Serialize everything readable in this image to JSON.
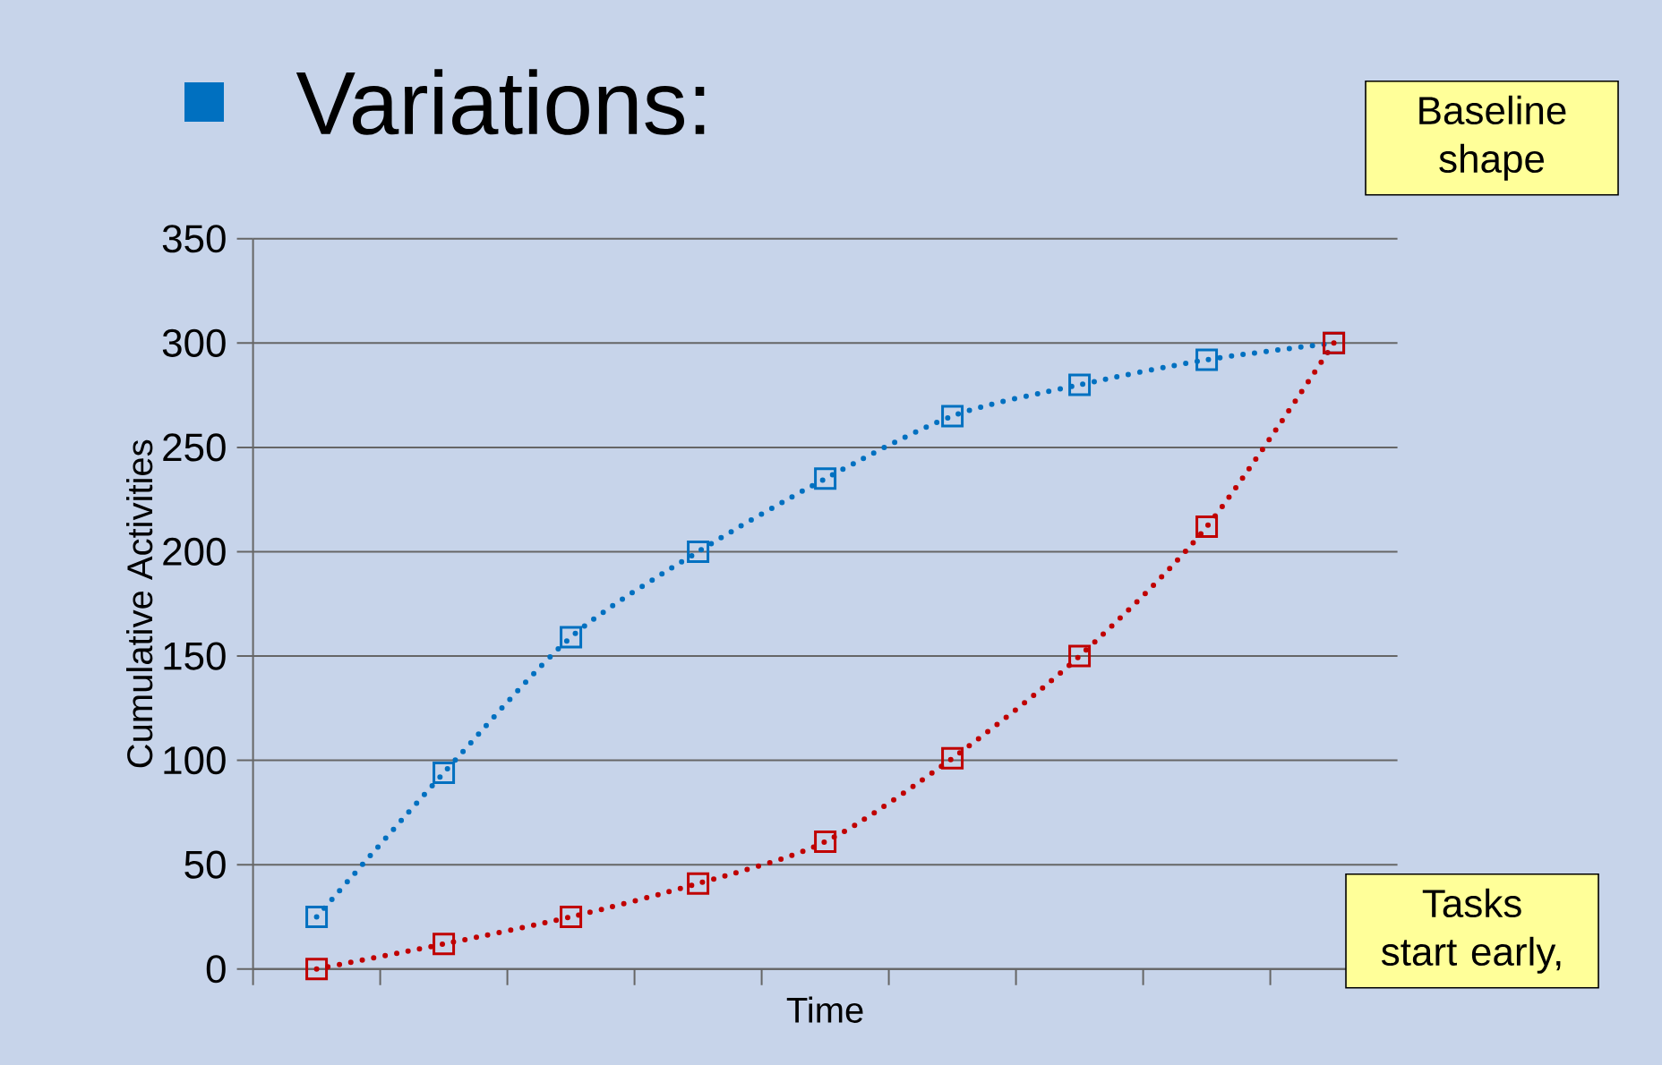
{
  "chart_data": {
    "type": "line",
    "title": "Variations:",
    "xlabel": "Time",
    "ylabel": "Cumulative Activities",
    "categories": [
      null,
      null,
      null,
      null,
      null,
      null,
      null,
      null,
      null
    ],
    "series": [
      {
        "color": "#0070c0",
        "values": [
          25,
          94,
          159,
          200,
          235,
          265,
          280,
          292,
          300
        ]
      },
      {
        "color": "#c00000",
        "values": [
          0,
          12,
          25,
          41,
          61,
          101,
          150,
          212,
          300
        ]
      }
    ],
    "ylim": [
      0,
      350
    ],
    "yticks": [
      0,
      50,
      100,
      150,
      200,
      250,
      300,
      350
    ],
    "grid": "y",
    "marker": "square",
    "line_style": "dotted",
    "annotations": [
      "Baseline shape",
      "Tasks start early,"
    ]
  }
}
